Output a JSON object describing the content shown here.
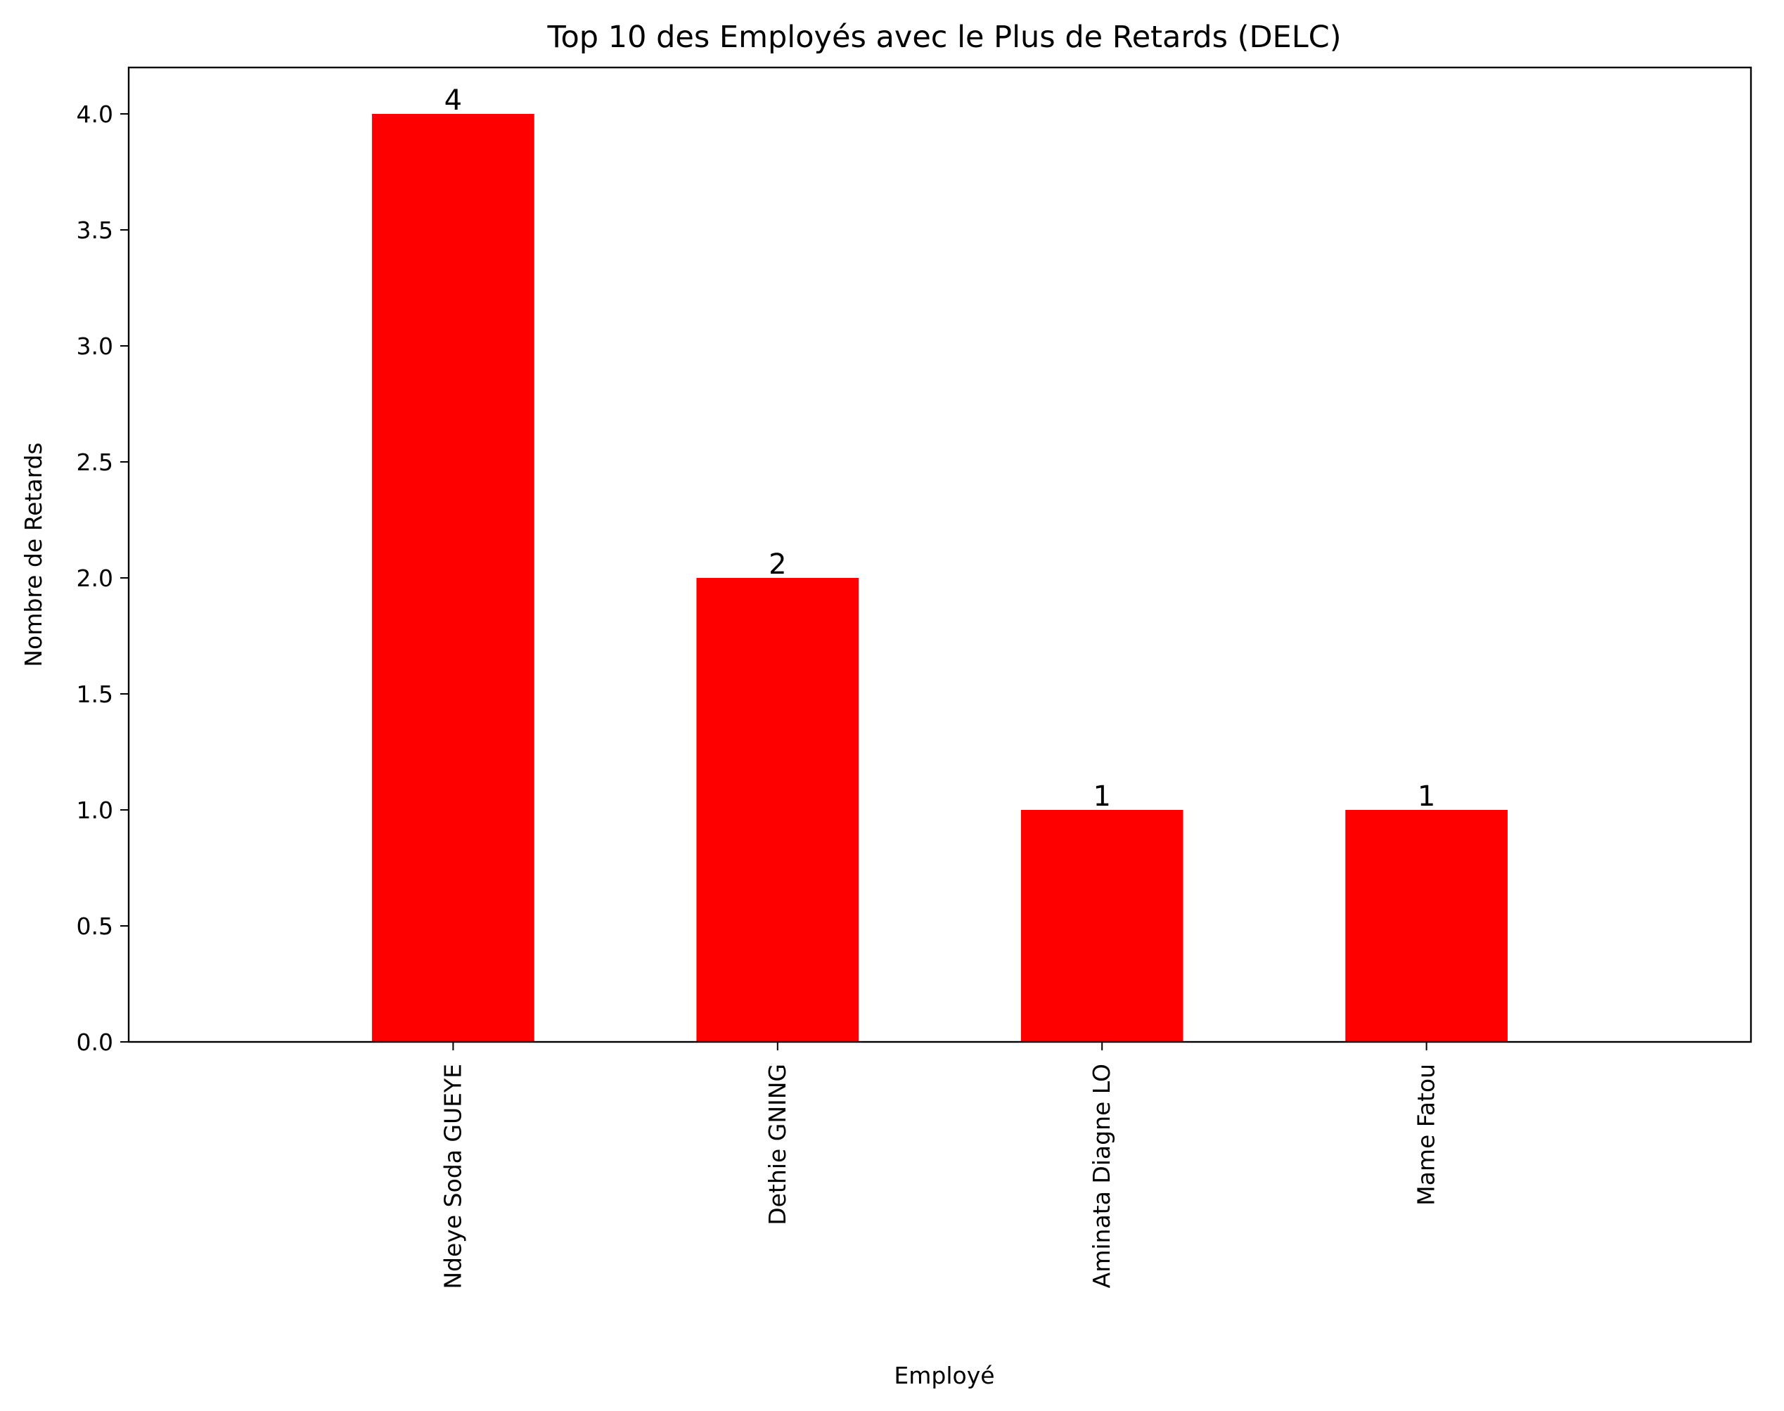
{
  "chart_data": {
    "type": "bar",
    "title": "Top 10 des Employés avec le Plus de Retards (DELC)",
    "xlabel": "Employé",
    "ylabel": "Nombre de Retards",
    "categories": [
      "Ndeye Soda GUEYE",
      "Dethie GNING",
      "Aminata Diagne LO",
      "Mame Fatou"
    ],
    "values": [
      4,
      2,
      1,
      1
    ],
    "data_labels": [
      "4",
      "2",
      "1",
      "1"
    ],
    "ylim": [
      0,
      4.2
    ],
    "yticks": [
      0,
      0.5,
      1,
      1.5,
      2,
      2.5,
      3,
      3.5,
      4
    ],
    "ytick_labels": [
      "0.0",
      "0.5",
      "1.0",
      "1.5",
      "2.0",
      "2.5",
      "3.0",
      "3.5",
      "4.0"
    ],
    "x_tick_rotation": "vertical",
    "grid": false,
    "legend": "none",
    "colors": {
      "bar": "#ff0000",
      "axis": "#000000",
      "background": "#ffffff"
    }
  }
}
